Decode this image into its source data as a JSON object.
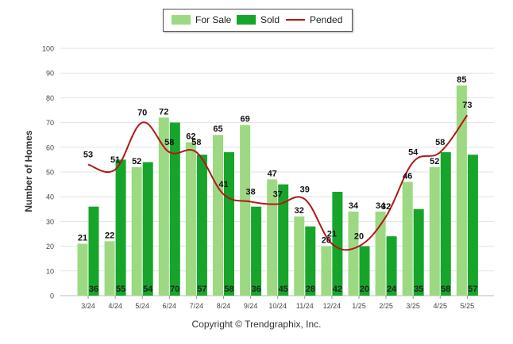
{
  "legend": {
    "for_sale": "For Sale",
    "sold": "Sold",
    "pended": "Pended"
  },
  "copyright": "Copyright © Trendgraphix, Inc.",
  "colors": {
    "for_sale": "#9dd982",
    "sold": "#16a52a",
    "pended": "#b01818",
    "grid": "#e3e3e3"
  },
  "chart_data": {
    "type": "bar",
    "title": "",
    "xlabel": "",
    "ylabel": "Number of Homes",
    "ylim": [
      0,
      100
    ],
    "yticks": [
      0,
      10,
      20,
      30,
      40,
      50,
      60,
      70,
      80,
      90,
      100
    ],
    "grid": true,
    "legend_position": "top-center",
    "categories": [
      "3/24",
      "4/24",
      "5/24",
      "6/24",
      "7/24",
      "8/24",
      "9/24",
      "10/24",
      "11/24",
      "12/24",
      "1/25",
      "2/25",
      "3/25",
      "4/25",
      "5/25"
    ],
    "series": [
      {
        "name": "For Sale",
        "type": "bar",
        "values": [
          21,
          22,
          52,
          72,
          62,
          65,
          69,
          47,
          32,
          20,
          34,
          34,
          46,
          52,
          85
        ]
      },
      {
        "name": "Sold",
        "type": "bar",
        "values": [
          36,
          55,
          54,
          70,
          57,
          58,
          36,
          45,
          28,
          42,
          20,
          24,
          35,
          58,
          57
        ]
      },
      {
        "name": "Pended",
        "type": "line",
        "values": [
          53,
          51,
          70,
          58,
          58,
          41,
          38,
          37,
          39,
          21,
          20,
          32,
          54,
          58,
          73
        ]
      }
    ]
  }
}
